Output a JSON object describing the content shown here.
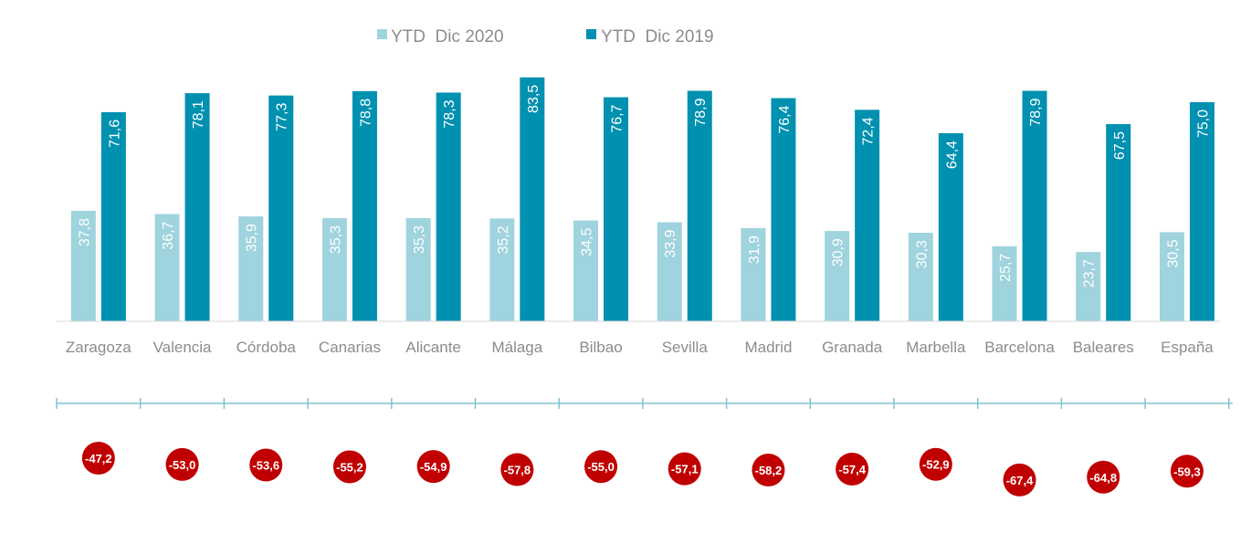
{
  "chart_data": {
    "type": "bar",
    "categories": [
      "Zaragoza",
      "Valencia",
      "Córdoba",
      "Canarias",
      "Alicante",
      "Málaga",
      "Bilbao",
      "Sevilla",
      "Madrid",
      "Granada",
      "Marbella",
      "Barcelona",
      "Baleares",
      "España"
    ],
    "series": [
      {
        "name": "YTD  Dic 2020",
        "values": [
          37.8,
          36.7,
          35.9,
          35.3,
          35.3,
          35.2,
          34.5,
          33.9,
          31.9,
          30.9,
          30.3,
          25.7,
          23.7,
          30.5
        ],
        "labels": [
          "37,8",
          "36,7",
          "35,9",
          "35,3",
          "35,3",
          "35,2",
          "34,5",
          "33,9",
          "31,9",
          "30,9",
          "30,3",
          "25,7",
          "23,7",
          "30,5"
        ]
      },
      {
        "name": "YTD  Dic 2019",
        "values": [
          71.6,
          78.1,
          77.3,
          78.8,
          78.3,
          83.5,
          76.7,
          78.9,
          76.4,
          72.4,
          64.4,
          78.9,
          67.5,
          75.0
        ],
        "labels": [
          "71,6",
          "78,1",
          "77,3",
          "78,8",
          "78,3",
          "83,5",
          "76,7",
          "78,9",
          "76,4",
          "72,4",
          "64,4",
          "78,9",
          "67,5",
          "75,0"
        ]
      }
    ],
    "variation": {
      "values": [
        -47.2,
        -53.0,
        -53.6,
        -55.2,
        -54.9,
        -57.8,
        -55.0,
        -57.1,
        -58.2,
        -57.4,
        -52.9,
        -67.4,
        -64.8,
        -59.3
      ],
      "labels": [
        "-47,2",
        "-53,0",
        "-53,6",
        "-55,2",
        "-54,9",
        "-57,8",
        "-55,0",
        "-57,1",
        "-58,2",
        "-57,4",
        "-52,9",
        "-67,4",
        "-64,8",
        "-59,3"
      ]
    },
    "ylim": [
      0,
      90
    ],
    "legend_position": "top-center",
    "grid": false
  },
  "colors": {
    "series_2020": "#9fd3dd",
    "series_2019": "#0090b0",
    "variation_bubble": "#c00000",
    "axis": "#d9d9d9",
    "timeline": "#7cc3d2"
  }
}
